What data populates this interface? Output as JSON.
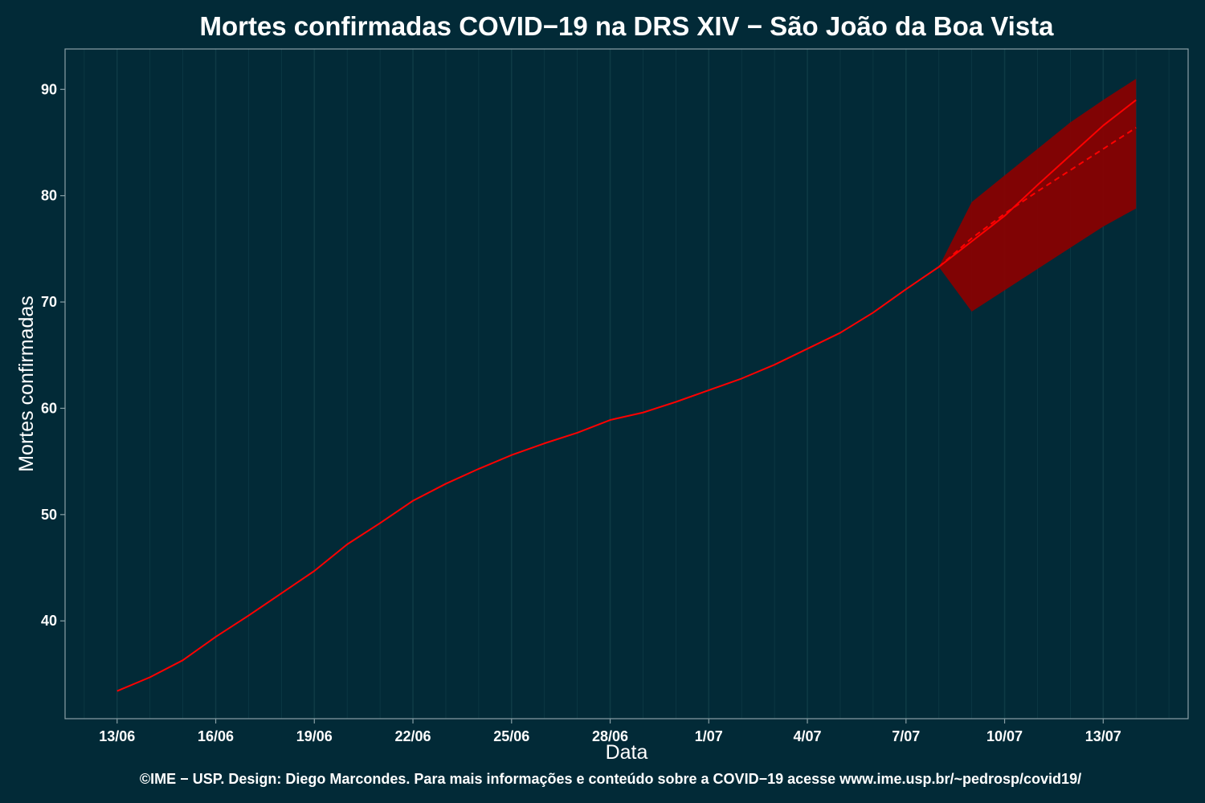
{
  "chart_data": {
    "type": "line",
    "title": "Mortes confirmadas COVID−19 na DRS XIV − São João da Boa Vista",
    "xlabel": "Data",
    "ylabel": "Mortes confirmadas",
    "caption": "©IME − USP. Design: Diego Marcondes. Para mais informações e conteúdo sobre a COVID−19 acesse www.ime.usp.br/~pedrosp/covid19/",
    "x_tick_labels": [
      "13/06",
      "16/06",
      "19/06",
      "22/06",
      "25/06",
      "28/06",
      "1/07",
      "4/07",
      "7/07",
      "10/07",
      "13/07"
    ],
    "y_tick_values": [
      40,
      50,
      60,
      70,
      80,
      90
    ],
    "xlim": [
      "2020-06-11T10:00",
      "2020-07-15T14:00"
    ],
    "ylim": [
      30.8,
      93.8
    ],
    "grid": "vertical",
    "colors": {
      "background": "#022a37",
      "line": "#ff0000",
      "band": "#8b0000",
      "grid": "#0e3a45",
      "border": "#8aa0a6",
      "text": "#ffffff"
    },
    "series": [
      {
        "style": "solid",
        "x": [
          "2020-06-13",
          "2020-06-14",
          "2020-06-15",
          "2020-06-16",
          "2020-06-17",
          "2020-06-18",
          "2020-06-19",
          "2020-06-20",
          "2020-06-21",
          "2020-06-22",
          "2020-06-23",
          "2020-06-24",
          "2020-06-25",
          "2020-06-26",
          "2020-06-27",
          "2020-06-28",
          "2020-06-29",
          "2020-06-30",
          "2020-07-01",
          "2020-07-02",
          "2020-07-03",
          "2020-07-04",
          "2020-07-05",
          "2020-07-06",
          "2020-07-07",
          "2020-07-08"
        ],
        "y": [
          33.4,
          34.7,
          36.3,
          38.5,
          40.5,
          42.6,
          44.7,
          47.2,
          49.2,
          51.3,
          52.9,
          54.3,
          55.6,
          56.7,
          57.7,
          58.9,
          59.6,
          60.6,
          61.7,
          62.8,
          64.1,
          65.6,
          67.1,
          69.0,
          71.2,
          73.3
        ]
      },
      {
        "style": "solid",
        "x": [
          "2020-07-08",
          "2020-07-09",
          "2020-07-10",
          "2020-07-11",
          "2020-07-12",
          "2020-07-13",
          "2020-07-14"
        ],
        "y": [
          73.3,
          75.7,
          78.1,
          81.0,
          83.8,
          86.6,
          89.0
        ]
      },
      {
        "style": "dashed",
        "x": [
          "2020-07-08",
          "2020-07-09",
          "2020-07-10",
          "2020-07-11",
          "2020-07-12",
          "2020-07-13",
          "2020-07-14"
        ],
        "y": [
          73.3,
          76.0,
          78.3,
          80.4,
          82.4,
          84.4,
          86.4
        ]
      }
    ],
    "band": {
      "x": [
        "2020-07-08",
        "2020-07-09",
        "2020-07-10",
        "2020-07-11",
        "2020-07-12",
        "2020-07-13",
        "2020-07-14"
      ],
      "lower": [
        73.3,
        69.1,
        71.1,
        73.1,
        75.1,
        77.1,
        78.8
      ],
      "upper": [
        73.3,
        79.4,
        81.9,
        84.4,
        86.9,
        89.0,
        91.0
      ]
    }
  }
}
